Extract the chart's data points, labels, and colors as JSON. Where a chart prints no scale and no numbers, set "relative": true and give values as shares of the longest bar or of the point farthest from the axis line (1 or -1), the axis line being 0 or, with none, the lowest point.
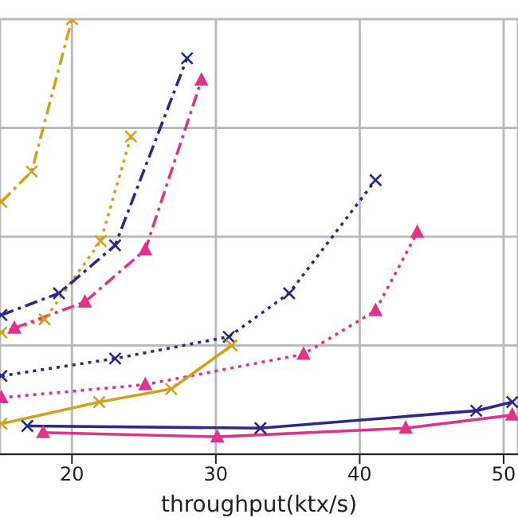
{
  "chart_data": {
    "type": "line",
    "xlabel": "throughput(ktx/s)",
    "relative": true,
    "xlim": [
      15,
      51
    ],
    "xticks": [
      20,
      30,
      40,
      50
    ],
    "grid": true,
    "series": [
      {
        "color": "#d4a020",
        "marker": "cross",
        "line_style": "dashed",
        "x": [
          15.1,
          17.2,
          20.0
        ],
        "values": [
          0.58,
          0.65,
          1.0
        ]
      },
      {
        "color": "#d4a020",
        "marker": "cross",
        "line_style": "dotted",
        "x": [
          15.1,
          18.1,
          22.0,
          24.1
        ],
        "values": [
          0.28,
          0.31,
          0.49,
          0.73
        ]
      },
      {
        "color": "#2b2b8c",
        "marker": "cross",
        "line_style": "dashed",
        "x": [
          15.1,
          19.1,
          23.0,
          28.0
        ],
        "values": [
          0.32,
          0.37,
          0.48,
          0.91
        ]
      },
      {
        "color": "#e0338a",
        "marker": "triangle",
        "line_style": "dashed",
        "x": [
          16.0,
          20.9,
          25.1,
          29.0
        ],
        "values": [
          0.29,
          0.35,
          0.47,
          0.86
        ]
      },
      {
        "color": "#2b2b8c",
        "marker": "cross",
        "line_style": "dotted",
        "x": [
          15.1,
          23.0,
          30.9,
          35.1,
          41.1
        ],
        "values": [
          0.18,
          0.22,
          0.27,
          0.37,
          0.63
        ]
      },
      {
        "color": "#e0338a",
        "marker": "triangle",
        "line_style": "dotted",
        "x": [
          15.1,
          25.1,
          36.1,
          41.1,
          44.0
        ],
        "values": [
          0.13,
          0.16,
          0.23,
          0.33,
          0.51
        ]
      },
      {
        "color": "#d4a020",
        "marker": "cross",
        "line_style": "solid",
        "x": [
          15.1,
          21.9,
          26.9,
          31.1
        ],
        "values": [
          0.07,
          0.12,
          0.15,
          0.25
        ]
      },
      {
        "color": "#2b2b8c",
        "marker": "cross",
        "line_style": "solid",
        "x": [
          16.9,
          33.1,
          48.1,
          50.6
        ],
        "values": [
          0.065,
          0.06,
          0.1,
          0.12
        ]
      },
      {
        "color": "#e0338a",
        "marker": "triangle",
        "line_style": "solid",
        "x": [
          18.0,
          30.1,
          43.2,
          50.6
        ],
        "values": [
          0.05,
          0.04,
          0.06,
          0.09
        ]
      }
    ]
  }
}
